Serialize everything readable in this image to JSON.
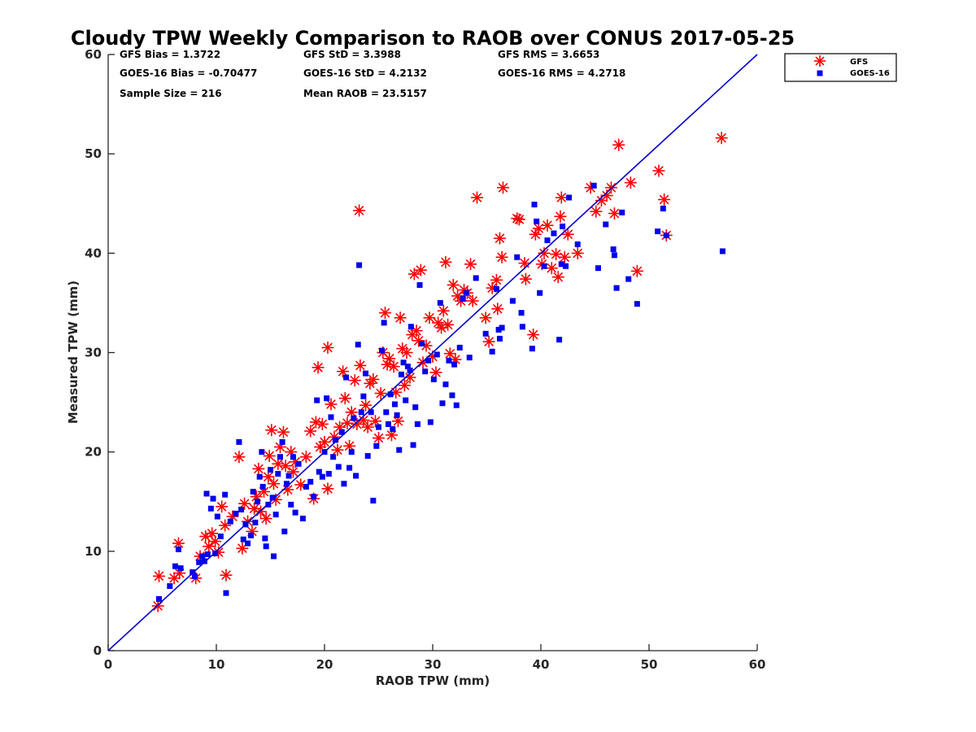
{
  "colors": {
    "gfs": "#ff0000",
    "goes": "#0000ee",
    "line": "#0000cc",
    "axis": "#262626"
  },
  "chart_data": {
    "type": "scatter",
    "title": "Cloudy TPW Weekly Comparison to RAOB over CONUS 2017-05-25",
    "xlabel": "RAOB TPW (mm)",
    "ylabel": "Measured TPW (mm)",
    "xlim": [
      0,
      60
    ],
    "ylim": [
      0,
      60
    ],
    "xticks": [
      "0",
      "10",
      "20",
      "30",
      "40",
      "50",
      "60"
    ],
    "yticks": [
      "0",
      "10",
      "20",
      "30",
      "40",
      "50",
      "60"
    ],
    "grid": false,
    "legend_position": "top-right (outside)",
    "reference_line": {
      "x": [
        0,
        60
      ],
      "y": [
        0,
        60
      ]
    },
    "stats": [
      [
        "GFS Bias = 1.3722",
        "GFS StD = 3.3988",
        "GFS RMS = 3.6653"
      ],
      [
        "GOES-16 Bias = -0.70477",
        "GOES-16 StD = 4.2132",
        "GOES-16 RMS = 4.2718"
      ],
      [
        "Sample Size = 216",
        "Mean RAOB = 23.5157"
      ]
    ],
    "series": [
      {
        "name": "GFS",
        "marker": "asterisk",
        "points": [
          [
            4.6,
            4.5
          ],
          [
            4.7,
            7.5
          ],
          [
            6.1,
            7.3
          ],
          [
            6.6,
            7.8
          ],
          [
            6.5,
            10.8
          ],
          [
            8.1,
            7.3
          ],
          [
            8.5,
            9.5
          ],
          [
            9.0,
            11.5
          ],
          [
            9.3,
            10.5
          ],
          [
            9.6,
            11.8
          ],
          [
            9.9,
            11.0
          ],
          [
            10.2,
            9.9
          ],
          [
            10.5,
            14.5
          ],
          [
            10.8,
            12.6
          ],
          [
            10.9,
            7.6
          ],
          [
            11.5,
            13.5
          ],
          [
            12.1,
            19.5
          ],
          [
            12.4,
            10.3
          ],
          [
            12.6,
            14.8
          ],
          [
            12.9,
            13.0
          ],
          [
            13.3,
            12.0
          ],
          [
            13.5,
            14.3
          ],
          [
            13.7,
            15.5
          ],
          [
            13.9,
            18.3
          ],
          [
            14.1,
            14.0
          ],
          [
            14.4,
            16.0
          ],
          [
            14.6,
            13.3
          ],
          [
            14.8,
            17.5
          ],
          [
            14.9,
            19.6
          ],
          [
            15.1,
            22.2
          ],
          [
            15.3,
            16.8
          ],
          [
            15.5,
            15.2
          ],
          [
            15.7,
            18.8
          ],
          [
            15.9,
            20.5
          ],
          [
            16.2,
            22.0
          ],
          [
            16.4,
            18.6
          ],
          [
            16.6,
            16.2
          ],
          [
            16.9,
            20.0
          ],
          [
            17.1,
            18.0
          ],
          [
            17.3,
            19.0
          ],
          [
            17.8,
            16.7
          ],
          [
            18.3,
            19.5
          ],
          [
            18.7,
            22.1
          ],
          [
            19.0,
            15.3
          ],
          [
            19.2,
            23.0
          ],
          [
            19.4,
            28.5
          ],
          [
            19.6,
            20.5
          ],
          [
            19.8,
            22.8
          ],
          [
            20.0,
            21.0
          ],
          [
            20.3,
            16.3
          ],
          [
            20.3,
            30.5
          ],
          [
            20.6,
            24.8
          ],
          [
            20.9,
            21.5
          ],
          [
            21.2,
            20.2
          ],
          [
            21.4,
            22.5
          ],
          [
            21.7,
            28.1
          ],
          [
            21.9,
            25.4
          ],
          [
            22.1,
            22.9
          ],
          [
            22.3,
            20.6
          ],
          [
            22.5,
            24.0
          ],
          [
            22.8,
            27.2
          ],
          [
            23.0,
            22.8
          ],
          [
            23.2,
            44.3
          ],
          [
            23.3,
            28.7
          ],
          [
            23.6,
            23.2
          ],
          [
            23.8,
            24.7
          ],
          [
            24.0,
            22.5
          ],
          [
            24.2,
            26.9
          ],
          [
            24.5,
            27.3
          ],
          [
            24.7,
            23.1
          ],
          [
            25.0,
            21.4
          ],
          [
            25.2,
            25.9
          ],
          [
            25.4,
            30.0
          ],
          [
            25.6,
            34.0
          ],
          [
            25.8,
            28.8
          ],
          [
            26.0,
            29.4
          ],
          [
            26.2,
            21.7
          ],
          [
            26.4,
            28.6
          ],
          [
            26.6,
            26.0
          ],
          [
            26.8,
            23.1
          ],
          [
            27.0,
            33.5
          ],
          [
            27.2,
            30.4
          ],
          [
            27.4,
            26.7
          ],
          [
            27.6,
            30.0
          ],
          [
            27.9,
            27.5
          ],
          [
            28.1,
            31.8
          ],
          [
            28.3,
            37.9
          ],
          [
            28.5,
            32.2
          ],
          [
            28.7,
            31.2
          ],
          [
            28.9,
            38.3
          ],
          [
            29.1,
            29.0
          ],
          [
            29.4,
            30.7
          ],
          [
            29.7,
            33.5
          ],
          [
            30.0,
            29.6
          ],
          [
            30.3,
            28.0
          ],
          [
            30.5,
            33.0
          ],
          [
            30.8,
            32.5
          ],
          [
            31.0,
            34.2
          ],
          [
            31.2,
            39.1
          ],
          [
            31.4,
            32.8
          ],
          [
            31.6,
            29.9
          ],
          [
            31.9,
            36.8
          ],
          [
            32.1,
            29.3
          ],
          [
            32.3,
            35.7
          ],
          [
            32.6,
            35.2
          ],
          [
            32.9,
            36.3
          ],
          [
            33.2,
            36.0
          ],
          [
            33.5,
            38.9
          ],
          [
            33.7,
            35.2
          ],
          [
            34.1,
            45.6
          ],
          [
            34.9,
            33.5
          ],
          [
            35.2,
            31.1
          ],
          [
            35.5,
            36.5
          ],
          [
            35.9,
            37.3
          ],
          [
            36.0,
            34.4
          ],
          [
            36.2,
            41.5
          ],
          [
            36.4,
            39.6
          ],
          [
            36.5,
            46.6
          ],
          [
            37.8,
            43.5
          ],
          [
            38.0,
            43.4
          ],
          [
            38.5,
            39.0
          ],
          [
            38.6,
            37.4
          ],
          [
            39.3,
            31.8
          ],
          [
            39.5,
            41.9
          ],
          [
            39.8,
            42.5
          ],
          [
            40.1,
            38.9
          ],
          [
            40.3,
            40.0
          ],
          [
            40.6,
            42.8
          ],
          [
            41.0,
            38.5
          ],
          [
            41.4,
            39.9
          ],
          [
            41.6,
            37.6
          ],
          [
            41.8,
            43.7
          ],
          [
            41.9,
            45.6
          ],
          [
            42.2,
            39.6
          ],
          [
            42.5,
            41.9
          ],
          [
            43.4,
            40.0
          ],
          [
            44.6,
            46.6
          ],
          [
            45.1,
            44.2
          ],
          [
            45.6,
            45.3
          ],
          [
            46.1,
            45.8
          ],
          [
            46.5,
            46.6
          ],
          [
            46.8,
            44.0
          ],
          [
            47.2,
            50.9
          ],
          [
            48.3,
            47.1
          ],
          [
            48.9,
            38.2
          ],
          [
            50.9,
            48.3
          ],
          [
            51.4,
            45.4
          ],
          [
            51.6,
            41.8
          ],
          [
            56.7,
            51.6
          ]
        ]
      },
      {
        "name": "GOES-16",
        "marker": "square",
        "points": [
          [
            4.7,
            5.2
          ],
          [
            5.7,
            6.5
          ],
          [
            6.2,
            8.5
          ],
          [
            6.5,
            10.2
          ],
          [
            6.7,
            8.3
          ],
          [
            7.8,
            7.9
          ],
          [
            8.0,
            7.5
          ],
          [
            8.4,
            8.9
          ],
          [
            8.7,
            9.5
          ],
          [
            8.9,
            9.0
          ],
          [
            9.1,
            15.8
          ],
          [
            9.2,
            9.7
          ],
          [
            9.5,
            14.3
          ],
          [
            9.7,
            15.3
          ],
          [
            9.9,
            9.8
          ],
          [
            10.1,
            13.5
          ],
          [
            10.4,
            11.5
          ],
          [
            10.8,
            15.7
          ],
          [
            10.9,
            5.8
          ],
          [
            11.3,
            13.0
          ],
          [
            11.8,
            13.8
          ],
          [
            12.1,
            21.0
          ],
          [
            12.3,
            14.2
          ],
          [
            12.5,
            11.2
          ],
          [
            12.7,
            12.7
          ],
          [
            12.9,
            10.8
          ],
          [
            13.2,
            11.6
          ],
          [
            13.4,
            16.0
          ],
          [
            13.6,
            12.9
          ],
          [
            13.8,
            15.0
          ],
          [
            14.0,
            17.5
          ],
          [
            14.2,
            20.0
          ],
          [
            14.3,
            16.5
          ],
          [
            14.5,
            11.3
          ],
          [
            14.6,
            10.5
          ],
          [
            14.8,
            14.7
          ],
          [
            15.0,
            18.2
          ],
          [
            15.2,
            15.4
          ],
          [
            15.3,
            9.5
          ],
          [
            15.5,
            13.7
          ],
          [
            15.7,
            17.8
          ],
          [
            15.9,
            19.5
          ],
          [
            16.1,
            21.0
          ],
          [
            16.3,
            12.0
          ],
          [
            16.5,
            16.8
          ],
          [
            16.7,
            17.6
          ],
          [
            16.9,
            14.7
          ],
          [
            17.1,
            19.5
          ],
          [
            17.3,
            13.9
          ],
          [
            17.6,
            18.8
          ],
          [
            18.0,
            13.3
          ],
          [
            18.3,
            16.5
          ],
          [
            18.7,
            17.0
          ],
          [
            19.0,
            15.5
          ],
          [
            19.3,
            25.2
          ],
          [
            19.5,
            18.0
          ],
          [
            19.8,
            17.5
          ],
          [
            20.0,
            20.0
          ],
          [
            20.2,
            25.4
          ],
          [
            20.4,
            17.8
          ],
          [
            20.6,
            23.5
          ],
          [
            20.8,
            19.5
          ],
          [
            21.0,
            21.2
          ],
          [
            21.3,
            18.5
          ],
          [
            21.6,
            22.0
          ],
          [
            21.8,
            16.8
          ],
          [
            22.0,
            27.5
          ],
          [
            22.3,
            18.4
          ],
          [
            22.5,
            20.0
          ],
          [
            22.7,
            23.4
          ],
          [
            22.9,
            17.6
          ],
          [
            23.1,
            30.8
          ],
          [
            23.2,
            38.8
          ],
          [
            23.4,
            24.0
          ],
          [
            23.6,
            25.6
          ],
          [
            23.8,
            27.9
          ],
          [
            24.0,
            19.6
          ],
          [
            24.3,
            24.0
          ],
          [
            24.5,
            15.1
          ],
          [
            24.8,
            20.6
          ],
          [
            25.0,
            22.5
          ],
          [
            25.3,
            30.2
          ],
          [
            25.5,
            33.0
          ],
          [
            25.7,
            24.0
          ],
          [
            25.9,
            22.8
          ],
          [
            26.1,
            25.8
          ],
          [
            26.3,
            22.3
          ],
          [
            26.5,
            24.8
          ],
          [
            26.7,
            23.7
          ],
          [
            26.9,
            20.2
          ],
          [
            27.1,
            27.8
          ],
          [
            27.3,
            29.0
          ],
          [
            27.5,
            25.2
          ],
          [
            27.7,
            28.6
          ],
          [
            27.9,
            28.2
          ],
          [
            28.0,
            32.6
          ],
          [
            28.2,
            20.7
          ],
          [
            28.4,
            24.5
          ],
          [
            28.6,
            22.8
          ],
          [
            28.8,
            36.8
          ],
          [
            29.0,
            30.9
          ],
          [
            29.3,
            28.1
          ],
          [
            29.6,
            29.2
          ],
          [
            29.8,
            23.0
          ],
          [
            30.1,
            27.3
          ],
          [
            30.4,
            29.8
          ],
          [
            30.7,
            35.0
          ],
          [
            30.9,
            24.9
          ],
          [
            31.2,
            26.8
          ],
          [
            31.5,
            29.2
          ],
          [
            31.8,
            25.7
          ],
          [
            32.0,
            28.8
          ],
          [
            32.2,
            24.7
          ],
          [
            32.5,
            30.5
          ],
          [
            32.8,
            35.4
          ],
          [
            33.1,
            36.0
          ],
          [
            33.4,
            29.5
          ],
          [
            34.0,
            37.5
          ],
          [
            34.9,
            31.9
          ],
          [
            35.5,
            30.1
          ],
          [
            35.9,
            36.4
          ],
          [
            36.1,
            32.3
          ],
          [
            36.2,
            31.4
          ],
          [
            36.4,
            32.5
          ],
          [
            37.4,
            35.2
          ],
          [
            37.8,
            39.6
          ],
          [
            38.2,
            34.0
          ],
          [
            38.3,
            32.6
          ],
          [
            39.2,
            30.4
          ],
          [
            39.4,
            44.9
          ],
          [
            39.6,
            43.2
          ],
          [
            39.9,
            36.0
          ],
          [
            40.3,
            38.7
          ],
          [
            40.6,
            41.3
          ],
          [
            41.2,
            42.0
          ],
          [
            41.7,
            31.3
          ],
          [
            41.9,
            38.9
          ],
          [
            42.0,
            42.7
          ],
          [
            42.3,
            38.7
          ],
          [
            42.6,
            45.6
          ],
          [
            43.4,
            40.9
          ],
          [
            44.9,
            46.8
          ],
          [
            45.3,
            38.5
          ],
          [
            46.0,
            42.9
          ],
          [
            46.7,
            40.4
          ],
          [
            46.8,
            39.8
          ],
          [
            47.0,
            36.5
          ],
          [
            47.5,
            44.1
          ],
          [
            48.1,
            37.4
          ],
          [
            48.9,
            34.9
          ],
          [
            50.8,
            42.2
          ],
          [
            51.3,
            44.5
          ],
          [
            51.6,
            41.8
          ],
          [
            56.8,
            40.2
          ]
        ]
      }
    ]
  }
}
